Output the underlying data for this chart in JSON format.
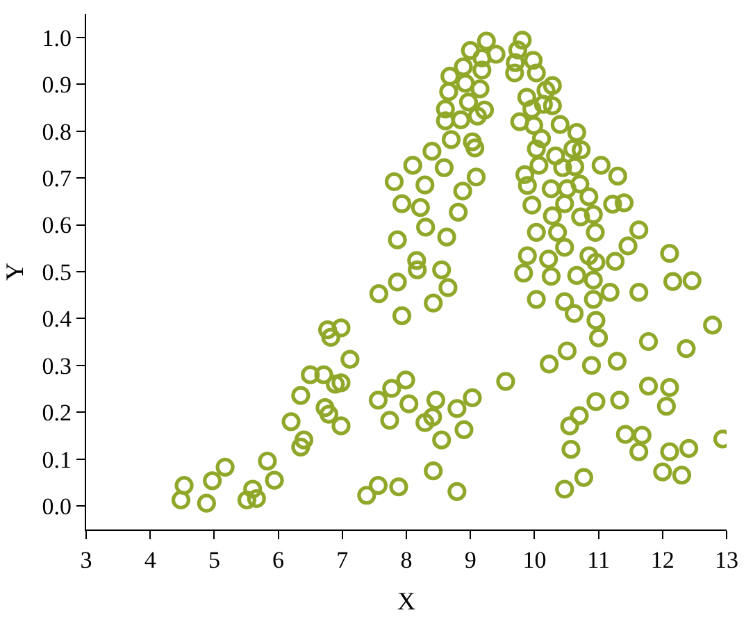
{
  "chart_data": {
    "type": "scatter",
    "xlabel": "X",
    "ylabel": "Y",
    "xlim": [
      3,
      13
    ],
    "ylim": [
      -0.05,
      1.05
    ],
    "xticks": [
      3,
      4,
      5,
      6,
      7,
      8,
      9,
      10,
      11,
      12,
      13
    ],
    "yticks": [
      {
        "value": 0,
        "label": "0.0"
      },
      {
        "value": 0.1,
        "label": "0.1"
      },
      {
        "value": 0.2,
        "label": "0.2"
      },
      {
        "value": 0.3,
        "label": "0.3"
      },
      {
        "value": 0.4,
        "label": "0.4"
      },
      {
        "value": 0.5,
        "label": "0.5"
      },
      {
        "value": 0.6,
        "label": "0.6"
      },
      {
        "value": 0.7,
        "label": "0.7"
      },
      {
        "value": 0.8,
        "label": "0.8"
      },
      {
        "value": 0.9,
        "label": "0.9"
      },
      {
        "value": 1.0,
        "label": "1.0"
      }
    ],
    "marker": "circle",
    "series": [
      {
        "color": "#8fa829",
        "x": [
          4.48,
          4.53,
          4.88,
          4.97,
          5.17,
          5.51,
          5.6,
          5.66,
          5.83,
          5.94,
          6.2,
          6.35,
          6.4,
          6.35,
          6.5,
          6.71,
          6.73,
          6.79,
          6.77,
          6.82,
          6.98,
          7.12,
          6.89,
          6.98,
          6.98,
          7.38,
          7.56,
          7.88,
          7.56,
          7.77,
          7.74,
          7.99,
          8.04,
          8.29,
          8.41,
          8.46,
          8.55,
          8.79,
          8.9,
          9.03,
          8.42,
          8.79,
          9.55,
          7.57,
          7.86,
          7.93,
          8.16,
          8.17,
          8.42,
          8.55,
          8.65,
          7.86,
          8.63,
          8.3,
          8.22,
          7.93,
          7.81,
          8.1,
          8.29,
          8.4,
          8.59,
          8.81,
          8.88,
          9.09,
          9.07,
          9.03,
          8.7,
          8.61,
          8.61,
          8.85,
          9.11,
          9.22,
          8.97,
          8.66,
          8.68,
          8.92,
          9.15,
          8.89,
          9.0,
          9.18,
          9.25,
          9.4,
          9.18,
          9.81,
          9.74,
          9.7,
          9.69,
          9.98,
          10.03,
          10.28,
          10.18,
          9.88,
          9.96,
          10.14,
          10.28,
          9.77,
          9.99,
          10.4,
          10.66,
          10.11,
          10.03,
          10.33,
          10.6,
          10.73,
          9.85,
          10.07,
          10.44,
          10.63,
          11.04,
          11.3,
          9.89,
          10.26,
          10.51,
          10.71,
          9.96,
          10.47,
          10.85,
          10.72,
          10.28,
          10.92,
          11.22,
          11.4,
          10.03,
          10.36,
          10.95,
          11.63,
          11.46,
          10.47,
          9.89,
          10.22,
          10.26,
          9.83,
          10.85,
          10.96,
          11.26,
          10.92,
          10.66,
          10.03,
          10.47,
          10.62,
          10.92,
          10.96,
          11.0,
          11.18,
          11.63,
          12.11,
          12.16,
          12.46,
          12.78,
          11.78,
          12.37,
          10.51,
          10.23,
          10.89,
          11.29,
          10.96,
          11.33,
          11.78,
          12.11,
          12.06,
          10.7,
          10.55,
          10.57,
          10.47,
          10.77,
          11.42,
          11.68,
          11.63,
          12.11,
          12.41,
          12.0,
          12.3,
          12.94
        ],
        "values": [
          0.013,
          0.044,
          0.006,
          0.054,
          0.083,
          0.013,
          0.036,
          0.016,
          0.096,
          0.055,
          0.18,
          0.126,
          0.141,
          0.236,
          0.28,
          0.28,
          0.21,
          0.196,
          0.376,
          0.36,
          0.38,
          0.313,
          0.26,
          0.263,
          0.171,
          0.023,
          0.044,
          0.041,
          0.226,
          0.251,
          0.183,
          0.269,
          0.218,
          0.178,
          0.19,
          0.226,
          0.141,
          0.208,
          0.163,
          0.231,
          0.075,
          0.031,
          0.266,
          0.453,
          0.478,
          0.406,
          0.524,
          0.504,
          0.433,
          0.504,
          0.466,
          0.568,
          0.574,
          0.595,
          0.637,
          0.645,
          0.692,
          0.727,
          0.685,
          0.757,
          0.722,
          0.627,
          0.672,
          0.702,
          0.764,
          0.777,
          0.782,
          0.822,
          0.847,
          0.824,
          0.832,
          0.845,
          0.862,
          0.884,
          0.917,
          0.902,
          0.89,
          0.937,
          0.972,
          0.93,
          0.992,
          0.964,
          0.956,
          0.994,
          0.973,
          0.946,
          0.924,
          0.951,
          0.924,
          0.897,
          0.887,
          0.872,
          0.847,
          0.857,
          0.854,
          0.82,
          0.812,
          0.814,
          0.797,
          0.784,
          0.762,
          0.747,
          0.762,
          0.76,
          0.707,
          0.727,
          0.722,
          0.724,
          0.727,
          0.704,
          0.684,
          0.677,
          0.677,
          0.687,
          0.642,
          0.645,
          0.66,
          0.617,
          0.619,
          0.622,
          0.644,
          0.647,
          0.584,
          0.584,
          0.584,
          0.589,
          0.555,
          0.552,
          0.534,
          0.527,
          0.49,
          0.497,
          0.534,
          0.52,
          0.522,
          0.482,
          0.492,
          0.441,
          0.436,
          0.411,
          0.441,
          0.396,
          0.359,
          0.456,
          0.456,
          0.539,
          0.479,
          0.481,
          0.386,
          0.351,
          0.336,
          0.331,
          0.303,
          0.3,
          0.309,
          0.223,
          0.226,
          0.256,
          0.253,
          0.213,
          0.193,
          0.171,
          0.121,
          0.036,
          0.061,
          0.153,
          0.151,
          0.116,
          0.116,
          0.123,
          0.073,
          0.066,
          0.143
        ]
      }
    ]
  }
}
